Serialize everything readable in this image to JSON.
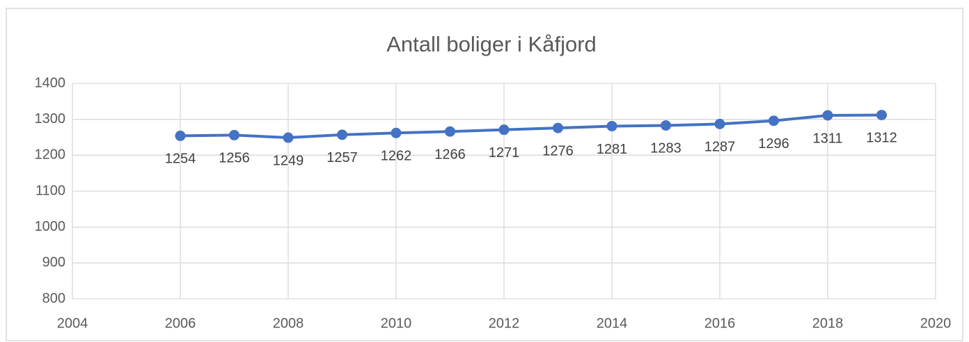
{
  "chart_data": {
    "type": "line",
    "title": "Antall boliger i Kåfjord",
    "x": [
      2006,
      2007,
      2008,
      2009,
      2010,
      2011,
      2012,
      2013,
      2014,
      2015,
      2016,
      2017,
      2018,
      2019
    ],
    "series": [
      {
        "name": "Antall boliger",
        "color": "#4472c4",
        "values": [
          1254,
          1256,
          1249,
          1257,
          1262,
          1266,
          1271,
          1276,
          1281,
          1283,
          1287,
          1296,
          1311,
          1312
        ]
      }
    ],
    "xlim": [
      2004,
      2020
    ],
    "xticks": [
      2004,
      2006,
      2008,
      2010,
      2012,
      2014,
      2016,
      2018,
      2020
    ],
    "ylim": [
      800,
      1400
    ],
    "yticks": [
      800,
      900,
      1000,
      1100,
      1200,
      1300,
      1400
    ],
    "grid": true,
    "data_labels": true
  }
}
